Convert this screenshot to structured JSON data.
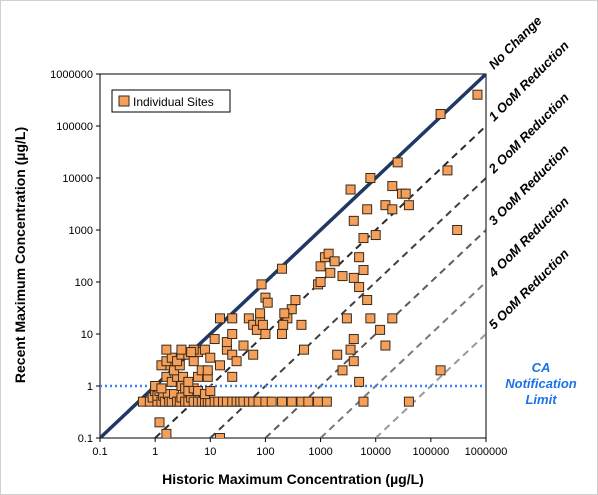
{
  "chart_data": {
    "type": "scatter",
    "title": "",
    "xlabel": "Historic Maximum Concentration (µg/L)",
    "ylabel": "Recent Maximum Concentration (µg/L)",
    "xscale": "log",
    "yscale": "log",
    "xlim": [
      0.1,
      1000000
    ],
    "ylim": [
      0.1,
      1000000
    ],
    "xticks": [
      "0.1",
      "1",
      "10",
      "100",
      "1000",
      "10000",
      "100000",
      "1000000"
    ],
    "yticks": [
      "0.1",
      "1",
      "10",
      "100",
      "1000",
      "10000",
      "100000",
      "1000000"
    ],
    "grid": false,
    "legend": {
      "position": "top-left",
      "entries": [
        "Individual Sites"
      ]
    },
    "colors": {
      "marker": "#f5a05a",
      "marker_edge": "#3a2a1a",
      "no_change_line": "#1f3864",
      "ca_line": "#3b82f6",
      "ca_text": "#1a73e8"
    },
    "reference_lines": [
      {
        "label": "No Change",
        "reduction_orders": 0
      },
      {
        "label": "1 OoM Reduction",
        "reduction_orders": 1
      },
      {
        "label": "2 OoM Reduction",
        "reduction_orders": 2
      },
      {
        "label": "3 OoM Reduction",
        "reduction_orders": 3
      },
      {
        "label": "4 OoM Reduction",
        "reduction_orders": 4
      },
      {
        "label": "5 OoM Reduction",
        "reduction_orders": 5
      }
    ],
    "threshold": {
      "y": 1,
      "label_lines": [
        "CA",
        "Notification",
        "Limit"
      ]
    },
    "series": [
      {
        "name": "Individual Sites",
        "points": [
          [
            0.6,
            0.5
          ],
          [
            0.8,
            0.5
          ],
          [
            0.9,
            0.6
          ],
          [
            1.0,
            0.8
          ],
          [
            1.1,
            0.5
          ],
          [
            1.1,
            0.65
          ],
          [
            1.2,
            0.8
          ],
          [
            1.3,
            0.5
          ],
          [
            1.4,
            0.65
          ],
          [
            1.5,
            0.5
          ],
          [
            1.7,
            0.7
          ],
          [
            1.8,
            0.5
          ],
          [
            2.0,
            0.5
          ],
          [
            2.2,
            0.7
          ],
          [
            2.5,
            0.5
          ],
          [
            2.8,
            0.5
          ],
          [
            3.0,
            0.6
          ],
          [
            3.5,
            0.5
          ],
          [
            4.0,
            0.5
          ],
          [
            4.5,
            0.6
          ],
          [
            5.0,
            0.5
          ],
          [
            6.0,
            0.5
          ],
          [
            7.0,
            0.5
          ],
          [
            8.0,
            0.5
          ],
          [
            9.0,
            0.5
          ],
          [
            10,
            0.5
          ],
          [
            12,
            0.5
          ],
          [
            14,
            0.5
          ],
          [
            17,
            0.5
          ],
          [
            20,
            0.5
          ],
          [
            25,
            0.5
          ],
          [
            30,
            0.5
          ],
          [
            35,
            0.5
          ],
          [
            40,
            0.5
          ],
          [
            50,
            0.5
          ],
          [
            60,
            0.5
          ],
          [
            75,
            0.5
          ],
          [
            100,
            0.5
          ],
          [
            130,
            0.5
          ],
          [
            200,
            0.5
          ],
          [
            300,
            0.5
          ],
          [
            450,
            0.5
          ],
          [
            600,
            0.5
          ],
          [
            900,
            0.5
          ],
          [
            1300,
            0.5
          ],
          [
            6000,
            0.5
          ],
          [
            40000,
            0.5
          ],
          [
            1.2,
            0.2
          ],
          [
            1.6,
            0.12
          ],
          [
            15,
            0.1
          ],
          [
            1.0,
            1.0
          ],
          [
            1.3,
            0.9
          ],
          [
            1.6,
            1.5
          ],
          [
            2.0,
            1.2
          ],
          [
            2.5,
            1.5
          ],
          [
            3.0,
            1.0
          ],
          [
            3.5,
            0.9
          ],
          [
            4.0,
            0.8
          ],
          [
            5.0,
            0.9
          ],
          [
            6.0,
            0.8
          ],
          [
            8.0,
            0.7
          ],
          [
            10,
            0.8
          ],
          [
            1.8,
            2.5
          ],
          [
            2.2,
            2.0
          ],
          [
            2.8,
            2.5
          ],
          [
            3.2,
            1.5
          ],
          [
            4.0,
            1.2
          ],
          [
            6.0,
            1.5
          ],
          [
            7.0,
            2.0
          ],
          [
            9.0,
            1.5
          ],
          [
            25,
            1.5
          ],
          [
            1.3,
            2.5
          ],
          [
            1.6,
            3.0
          ],
          [
            2.0,
            3.5
          ],
          [
            2.5,
            3.0
          ],
          [
            3.0,
            4.0
          ],
          [
            4.0,
            4.0
          ],
          [
            5.0,
            3.0
          ],
          [
            6.0,
            4.5
          ],
          [
            8.0,
            5.0
          ],
          [
            10,
            3.5
          ],
          [
            1.6,
            5.0
          ],
          [
            3.0,
            5.0
          ],
          [
            5.0,
            5.0
          ],
          [
            4.5,
            4.5
          ],
          [
            20,
            5.0
          ],
          [
            25,
            4.0
          ],
          [
            30,
            3.0
          ],
          [
            12,
            8.0
          ],
          [
            20,
            7.0
          ],
          [
            25,
            10
          ],
          [
            40,
            6.0
          ],
          [
            60,
            4.0
          ],
          [
            9.0,
            2.0
          ],
          [
            15,
            2.5
          ],
          [
            15,
            20
          ],
          [
            25,
            20
          ],
          [
            50,
            20
          ],
          [
            60,
            15
          ],
          [
            70,
            12
          ],
          [
            80,
            18
          ],
          [
            100,
            10
          ],
          [
            80,
            25
          ],
          [
            100,
            50
          ],
          [
            110,
            40
          ],
          [
            90,
            15
          ],
          [
            200,
            10
          ],
          [
            250,
            20
          ],
          [
            300,
            30
          ],
          [
            350,
            45
          ],
          [
            450,
            15
          ],
          [
            220,
            25
          ],
          [
            210,
            15
          ],
          [
            85,
            90
          ],
          [
            200,
            180
          ],
          [
            900,
            90
          ],
          [
            1000,
            200
          ],
          [
            1200,
            300
          ],
          [
            1400,
            350
          ],
          [
            1800,
            250
          ],
          [
            1500,
            150
          ],
          [
            1000,
            100
          ],
          [
            2500,
            130
          ],
          [
            4000,
            120
          ],
          [
            5000,
            80
          ],
          [
            6000,
            170
          ],
          [
            7000,
            45
          ],
          [
            8000,
            20
          ],
          [
            3000,
            20
          ],
          [
            4000,
            8.0
          ],
          [
            3500,
            5.0
          ],
          [
            12000,
            12
          ],
          [
            20000,
            20
          ],
          [
            15000,
            6.0
          ],
          [
            4000,
            3.0
          ],
          [
            5000,
            1.2
          ],
          [
            2500,
            2.0
          ],
          [
            500,
            5.0
          ],
          [
            2000,
            4.0
          ],
          [
            4000,
            1500
          ],
          [
            3500,
            6000
          ],
          [
            8000,
            10000
          ],
          [
            25000,
            20000
          ],
          [
            20000,
            7000
          ],
          [
            30000,
            5000
          ],
          [
            35000,
            5000
          ],
          [
            7000,
            2500
          ],
          [
            15000,
            3000
          ],
          [
            20000,
            2500
          ],
          [
            40000,
            3000
          ],
          [
            6000,
            700
          ],
          [
            10000,
            800
          ],
          [
            5000,
            300
          ],
          [
            150000,
            170000
          ],
          [
            700000,
            400000
          ],
          [
            200000,
            14000
          ],
          [
            300000,
            1000
          ],
          [
            150000,
            2
          ]
        ]
      }
    ]
  }
}
